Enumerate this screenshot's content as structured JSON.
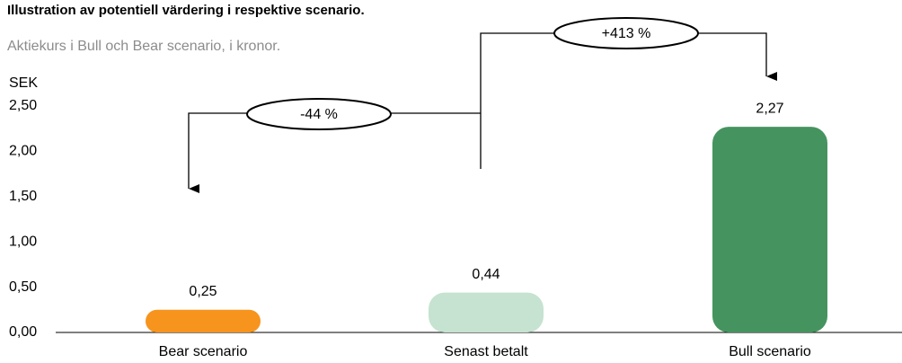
{
  "chart_data": {
    "type": "bar",
    "title": "Illustration av potentiell värdering i respektive scenario.",
    "subtitle": "Aktiekurs i Bull och Bear scenario, i kronor.",
    "y_label": "SEK",
    "categories": [
      "Bear scenario",
      "Senast betalt",
      "Bull scenario"
    ],
    "values": [
      0.25,
      0.44,
      2.27
    ],
    "value_labels": [
      "0,25",
      "0,44",
      "2,27"
    ],
    "colors": [
      "#f7941d",
      "#c5e3d0",
      "#45945f"
    ],
    "ylim": [
      0,
      2.5
    ],
    "yticks": [
      {
        "value": 0,
        "label": "0,00"
      },
      {
        "value": 0.5,
        "label": "0,50"
      },
      {
        "value": 1,
        "label": "1,00"
      },
      {
        "value": 1.5,
        "label": "1,50"
      },
      {
        "value": 2,
        "label": "2,00"
      },
      {
        "value": 2.5,
        "label": "2,50"
      }
    ],
    "annotations": [
      "-44 %",
      "+413 %"
    ]
  }
}
